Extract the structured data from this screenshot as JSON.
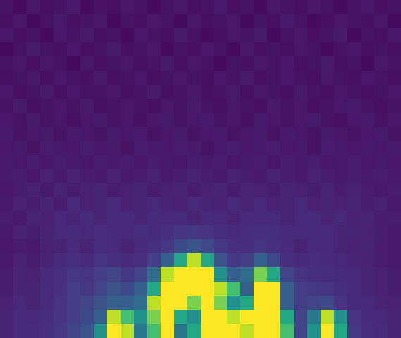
{
  "chart_data": {
    "type": "heatmap",
    "tick_labels": false,
    "zlim": [
      0,
      1
    ],
    "z": [
      [
        0.05,
        0.03,
        0.06,
        0.04,
        0.05,
        0.07,
        0.03,
        0.05,
        0.04,
        0.06,
        0.05,
        0.03,
        0.05,
        0.06,
        0.04,
        0.05,
        0.07,
        0.04,
        0.05,
        0.03,
        0.06,
        0.05,
        0.04,
        0.06,
        0.05,
        0.03,
        0.05,
        0.06,
        0.04,
        0.05
      ],
      [
        0.04,
        0.06,
        0.03,
        0.05,
        0.07,
        0.04,
        0.05,
        0.06,
        0.03,
        0.05,
        0.04,
        0.06,
        0.05,
        0.03,
        0.06,
        0.04,
        0.05,
        0.06,
        0.03,
        0.05,
        0.04,
        0.07,
        0.05,
        0.03,
        0.04,
        0.06,
        0.05,
        0.04,
        0.06,
        0.03
      ],
      [
        0.06,
        0.04,
        0.05,
        0.03,
        0.06,
        0.05,
        0.07,
        0.04,
        0.05,
        0.03,
        0.06,
        0.05,
        0.04,
        0.07,
        0.05,
        0.03,
        0.04,
        0.06,
        0.05,
        0.07,
        0.03,
        0.05,
        0.06,
        0.04,
        0.05,
        0.07,
        0.03,
        0.05,
        0.04,
        0.06
      ],
      [
        0.03,
        0.05,
        0.07,
        0.05,
        0.04,
        0.06,
        0.04,
        0.05,
        0.07,
        0.04,
        0.05,
        0.06,
        0.03,
        0.05,
        0.04,
        0.06,
        0.05,
        0.03,
        0.06,
        0.04,
        0.05,
        0.04,
        0.06,
        0.05,
        0.03,
        0.05,
        0.06,
        0.04,
        0.05,
        0.04
      ],
      [
        0.05,
        0.06,
        0.04,
        0.06,
        0.05,
        0.03,
        0.06,
        0.04,
        0.05,
        0.06,
        0.04,
        0.05,
        0.07,
        0.04,
        0.06,
        0.05,
        0.03,
        0.05,
        0.04,
        0.06,
        0.05,
        0.06,
        0.04,
        0.05,
        0.07,
        0.04,
        0.05,
        0.03,
        0.06,
        0.05
      ],
      [
        0.04,
        0.05,
        0.06,
        0.04,
        0.06,
        0.05,
        0.04,
        0.07,
        0.04,
        0.05,
        0.06,
        0.04,
        0.05,
        0.06,
        0.05,
        0.04,
        0.06,
        0.05,
        0.07,
        0.04,
        0.05,
        0.06,
        0.05,
        0.04,
        0.06,
        0.05,
        0.04,
        0.06,
        0.05,
        0.04
      ],
      [
        0.06,
        0.04,
        0.05,
        0.07,
        0.04,
        0.06,
        0.05,
        0.05,
        0.06,
        0.04,
        0.05,
        0.07,
        0.04,
        0.05,
        0.06,
        0.04,
        0.05,
        0.07,
        0.04,
        0.06,
        0.05,
        0.04,
        0.07,
        0.05,
        0.04,
        0.06,
        0.05,
        0.04,
        0.05,
        0.06
      ],
      [
        0.05,
        0.07,
        0.04,
        0.05,
        0.06,
        0.05,
        0.07,
        0.04,
        0.05,
        0.06,
        0.05,
        0.04,
        0.06,
        0.05,
        0.07,
        0.05,
        0.04,
        0.06,
        0.05,
        0.04,
        0.07,
        0.05,
        0.06,
        0.04,
        0.05,
        0.06,
        0.07,
        0.05,
        0.04,
        0.05
      ],
      [
        0.06,
        0.05,
        0.07,
        0.05,
        0.06,
        0.04,
        0.06,
        0.07,
        0.05,
        0.06,
        0.04,
        0.06,
        0.07,
        0.05,
        0.06,
        0.07,
        0.05,
        0.06,
        0.04,
        0.07,
        0.06,
        0.05,
        0.06,
        0.07,
        0.05,
        0.04,
        0.06,
        0.07,
        0.05,
        0.06
      ],
      [
        0.07,
        0.05,
        0.06,
        0.07,
        0.05,
        0.07,
        0.06,
        0.05,
        0.07,
        0.06,
        0.07,
        0.05,
        0.06,
        0.07,
        0.05,
        0.06,
        0.07,
        0.05,
        0.06,
        0.07,
        0.05,
        0.07,
        0.06,
        0.05,
        0.07,
        0.06,
        0.05,
        0.06,
        0.07,
        0.05
      ],
      [
        0.06,
        0.07,
        0.05,
        0.08,
        0.07,
        0.06,
        0.08,
        0.06,
        0.07,
        0.05,
        0.08,
        0.07,
        0.06,
        0.08,
        0.07,
        0.05,
        0.07,
        0.08,
        0.06,
        0.07,
        0.08,
        0.06,
        0.07,
        0.05,
        0.08,
        0.07,
        0.06,
        0.07,
        0.06,
        0.07
      ],
      [
        0.07,
        0.06,
        0.08,
        0.06,
        0.08,
        0.07,
        0.06,
        0.08,
        0.07,
        0.08,
        0.06,
        0.08,
        0.07,
        0.06,
        0.08,
        0.07,
        0.08,
        0.06,
        0.07,
        0.08,
        0.06,
        0.08,
        0.07,
        0.08,
        0.06,
        0.07,
        0.08,
        0.06,
        0.07,
        0.06
      ],
      [
        0.07,
        0.08,
        0.06,
        0.09,
        0.07,
        0.09,
        0.08,
        0.07,
        0.09,
        0.07,
        0.08,
        0.09,
        0.07,
        0.08,
        0.09,
        0.08,
        0.07,
        0.09,
        0.08,
        0.07,
        0.09,
        0.08,
        0.07,
        0.09,
        0.08,
        0.07,
        0.08,
        0.07,
        0.08,
        0.07
      ],
      [
        0.06,
        0.08,
        0.09,
        0.07,
        0.1,
        0.08,
        0.09,
        0.1,
        0.08,
        0.09,
        0.1,
        0.08,
        0.09,
        0.1,
        0.08,
        0.09,
        0.1,
        0.08,
        0.1,
        0.09,
        0.08,
        0.1,
        0.09,
        0.08,
        0.1,
        0.08,
        0.09,
        0.08,
        0.07,
        0.08
      ],
      [
        0.07,
        0.09,
        0.08,
        0.1,
        0.08,
        0.11,
        0.09,
        0.1,
        0.11,
        0.09,
        0.1,
        0.11,
        0.1,
        0.09,
        0.11,
        0.1,
        0.09,
        0.11,
        0.1,
        0.11,
        0.09,
        0.1,
        0.11,
        0.09,
        0.1,
        0.09,
        0.1,
        0.08,
        0.09,
        0.07
      ],
      [
        0.08,
        0.07,
        0.1,
        0.09,
        0.11,
        0.1,
        0.12,
        0.1,
        0.11,
        0.12,
        0.1,
        0.12,
        0.11,
        0.12,
        0.1,
        0.12,
        0.11,
        0.1,
        0.12,
        0.11,
        0.12,
        0.1,
        0.11,
        0.12,
        0.1,
        0.11,
        0.09,
        0.1,
        0.08,
        0.08
      ],
      [
        0.07,
        0.09,
        0.08,
        0.1,
        0.11,
        0.12,
        0.11,
        0.13,
        0.12,
        0.11,
        0.13,
        0.12,
        0.14,
        0.15,
        0.16,
        0.15,
        0.13,
        0.12,
        0.13,
        0.14,
        0.13,
        0.12,
        0.11,
        0.12,
        0.11,
        0.1,
        0.1,
        0.09,
        0.08,
        0.07
      ],
      [
        0.06,
        0.08,
        0.07,
        0.09,
        0.1,
        0.12,
        0.1,
        0.13,
        0.12,
        0.1,
        0.12,
        0.14,
        0.16,
        0.22,
        0.26,
        0.22,
        0.16,
        0.14,
        0.13,
        0.15,
        0.14,
        0.12,
        0.1,
        0.12,
        0.11,
        0.1,
        0.09,
        0.1,
        0.08,
        0.07
      ],
      [
        0.07,
        0.09,
        0.08,
        0.1,
        0.12,
        0.14,
        0.12,
        0.15,
        0.14,
        0.12,
        0.14,
        0.18,
        0.3,
        0.6,
        0.9,
        0.6,
        0.25,
        0.16,
        0.18,
        0.3,
        0.22,
        0.14,
        0.12,
        0.13,
        0.12,
        0.11,
        0.1,
        0.09,
        0.08,
        0.07
      ],
      [
        0.08,
        0.1,
        0.09,
        0.12,
        0.14,
        0.16,
        0.15,
        0.18,
        0.2,
        0.16,
        0.2,
        0.35,
        0.9,
        1,
        1,
        1,
        0.5,
        0.3,
        0.35,
        0.8,
        0.6,
        0.2,
        0.15,
        0.14,
        0.13,
        0.12,
        0.11,
        0.1,
        0.09,
        0.08
      ],
      [
        0.08,
        0.1,
        0.1,
        0.12,
        0.14,
        0.18,
        0.16,
        0.2,
        0.25,
        0.22,
        0.3,
        0.6,
        1,
        1,
        1,
        1,
        0.9,
        0.7,
        0.3,
        1,
        1,
        0.3,
        0.18,
        0.16,
        0.15,
        0.13,
        0.12,
        0.1,
        0.09,
        0.08
      ],
      [
        0.09,
        0.11,
        0.1,
        0.12,
        0.15,
        0.18,
        0.2,
        0.25,
        0.3,
        0.3,
        0.35,
        0.9,
        1,
        1,
        0.8,
        1,
        0.8,
        0.5,
        0.6,
        1,
        1,
        0.3,
        0.18,
        0.2,
        0.22,
        0.15,
        0.12,
        0.11,
        0.1,
        0.09
      ],
      [
        0.1,
        0.12,
        0.11,
        0.13,
        0.15,
        0.18,
        0.22,
        0.3,
        0.9,
        0.7,
        0.5,
        0.8,
        1,
        0.6,
        0.5,
        1,
        1,
        0.9,
        1,
        1,
        1,
        0.6,
        0.2,
        0.4,
        0.9,
        0.5,
        0.15,
        0.12,
        0.11,
        0.1
      ],
      [
        0.1,
        0.12,
        0.12,
        0.14,
        0.16,
        0.2,
        0.25,
        0.5,
        1,
        0.9,
        0.4,
        0.7,
        1,
        0.4,
        0.6,
        1,
        1,
        1,
        0.9,
        1,
        1,
        0.7,
        0.2,
        0.5,
        1,
        0.6,
        0.16,
        0.13,
        0.12,
        0.1
      ]
    ]
  }
}
